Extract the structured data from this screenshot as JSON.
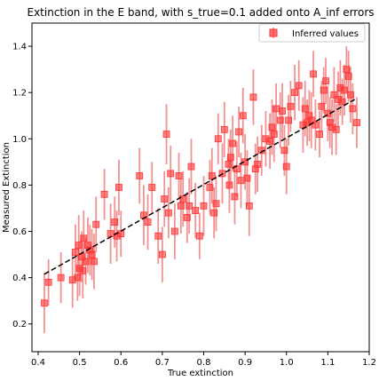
{
  "chart_data": {
    "type": "scatter",
    "title": "Extinction in the E band, with s_true=0.1 added onto A_inf errors",
    "xlabel": "True extinction",
    "ylabel": "Measured Extinction",
    "xlim": [
      0.385,
      1.2
    ],
    "ylim": [
      0.08,
      1.5
    ],
    "xticks": [
      "0.4",
      "0.5",
      "0.6",
      "0.7",
      "0.8",
      "0.9",
      "1.0",
      "1.1",
      "1.2"
    ],
    "yticks": [
      "0.2",
      "0.4",
      "0.6",
      "0.8",
      "1.0",
      "1.2",
      "1.4"
    ],
    "legend": {
      "label": "Inferred values",
      "placement": "top-right"
    },
    "marker_color": "#ff3333",
    "errorbar_color": "#f08080",
    "fit_line": {
      "color": "#000000",
      "style": "dashed",
      "x": [
        0.415,
        1.165
      ],
      "y": [
        0.415,
        1.17
      ]
    },
    "series": [
      {
        "name": "Inferred values",
        "x": [
          0.415,
          0.425,
          0.455,
          0.483,
          0.49,
          0.495,
          0.498,
          0.5,
          0.505,
          0.508,
          0.51,
          0.515,
          0.52,
          0.525,
          0.53,
          0.535,
          0.54,
          0.56,
          0.575,
          0.585,
          0.59,
          0.595,
          0.6,
          0.645,
          0.655,
          0.665,
          0.675,
          0.69,
          0.7,
          0.705,
          0.71,
          0.715,
          0.72,
          0.73,
          0.74,
          0.745,
          0.75,
          0.76,
          0.765,
          0.77,
          0.78,
          0.79,
          0.8,
          0.815,
          0.82,
          0.825,
          0.83,
          0.835,
          0.845,
          0.85,
          0.86,
          0.862,
          0.865,
          0.87,
          0.875,
          0.88,
          0.885,
          0.89,
          0.895,
          0.9,
          0.905,
          0.91,
          0.92,
          0.925,
          0.93,
          0.94,
          0.95,
          0.96,
          0.965,
          0.97,
          0.975,
          0.985,
          0.99,
          0.995,
          1.0,
          1.005,
          1.01,
          1.02,
          1.03,
          1.04,
          1.045,
          1.05,
          1.055,
          1.06,
          1.065,
          1.07,
          1.08,
          1.085,
          1.09,
          1.095,
          1.1,
          1.105,
          1.11,
          1.115,
          1.12,
          1.125,
          1.13,
          1.135,
          1.14,
          1.145,
          1.15,
          1.155,
          1.16,
          1.17
        ],
        "y": [
          0.29,
          0.38,
          0.4,
          0.39,
          0.51,
          0.4,
          0.54,
          0.44,
          0.49,
          0.43,
          0.57,
          0.47,
          0.54,
          0.52,
          0.5,
          0.47,
          0.63,
          0.76,
          0.59,
          0.64,
          0.58,
          0.79,
          0.59,
          0.84,
          0.67,
          0.64,
          0.79,
          0.58,
          0.5,
          0.74,
          1.02,
          0.68,
          0.85,
          0.6,
          0.84,
          0.71,
          0.74,
          0.66,
          0.71,
          0.88,
          0.69,
          0.58,
          0.71,
          0.79,
          0.84,
          0.68,
          0.72,
          1.0,
          0.85,
          1.04,
          0.89,
          0.8,
          0.92,
          0.98,
          0.75,
          0.87,
          1.03,
          0.82,
          1.1,
          0.9,
          0.83,
          0.71,
          1.18,
          0.87,
          0.89,
          0.95,
          1.0,
          0.99,
          1.05,
          1.02,
          1.13,
          1.08,
          1.12,
          0.95,
          0.88,
          1.08,
          1.14,
          1.2,
          1.23,
          1.06,
          1.13,
          1.07,
          1.1,
          1.08,
          1.28,
          1.06,
          1.02,
          1.14,
          1.21,
          1.25,
          1.11,
          1.07,
          1.05,
          1.19,
          1.04,
          1.17,
          1.22,
          1.16,
          1.21,
          1.3,
          1.27,
          1.19,
          1.13,
          1.07
        ],
        "yerr": [
          0.13,
          0.1,
          0.11,
          0.12,
          0.12,
          0.1,
          0.13,
          0.12,
          0.11,
          0.12,
          0.12,
          0.1,
          0.12,
          0.11,
          0.11,
          0.12,
          0.12,
          0.11,
          0.13,
          0.11,
          0.11,
          0.12,
          0.1,
          0.12,
          0.13,
          0.12,
          0.11,
          0.12,
          0.12,
          0.12,
          0.13,
          0.11,
          0.12,
          0.12,
          0.1,
          0.12,
          0.12,
          0.11,
          0.12,
          0.12,
          0.12,
          0.1,
          0.13,
          0.12,
          0.12,
          0.11,
          0.12,
          0.11,
          0.13,
          0.12,
          0.11,
          0.12,
          0.12,
          0.12,
          0.12,
          0.12,
          0.11,
          0.12,
          0.12,
          0.12,
          0.12,
          0.13,
          0.12,
          0.11,
          0.12,
          0.11,
          0.12,
          0.12,
          0.12,
          0.12,
          0.11,
          0.12,
          0.12,
          0.11,
          0.12,
          0.11,
          0.11,
          0.12,
          0.11,
          0.12,
          0.12,
          0.1,
          0.11,
          0.12,
          0.1,
          0.11,
          0.1,
          0.11,
          0.1,
          0.1,
          0.12,
          0.11,
          0.12,
          0.12,
          0.11,
          0.12,
          0.12,
          0.1,
          0.11,
          0.1,
          0.11,
          0.12,
          0.11,
          0.11
        ]
      }
    ]
  }
}
